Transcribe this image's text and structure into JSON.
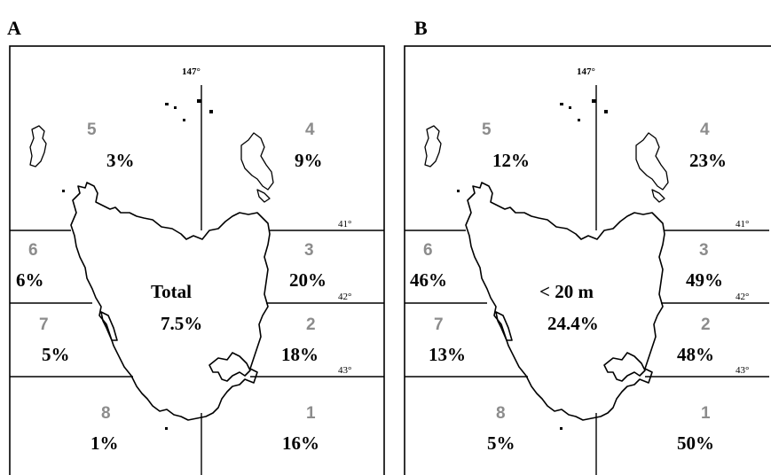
{
  "panels": [
    {
      "letter": "A",
      "top_coord": "147°",
      "center_title": "Total",
      "center_value": "7.5%",
      "lat_labels": [
        "41°",
        "42°",
        "43°"
      ],
      "zones": [
        {
          "num": "1",
          "pct": "16%"
        },
        {
          "num": "2",
          "pct": "18%"
        },
        {
          "num": "3",
          "pct": "20%"
        },
        {
          "num": "4",
          "pct": "9%"
        },
        {
          "num": "5",
          "pct": "3%"
        },
        {
          "num": "6",
          "pct": "6%"
        },
        {
          "num": "7",
          "pct": "5%"
        },
        {
          "num": "8",
          "pct": "1%"
        }
      ]
    },
    {
      "letter": "B",
      "top_coord": "147°",
      "center_title": "< 20 m",
      "center_value": "24.4%",
      "lat_labels": [
        "41°",
        "42°",
        "43°"
      ],
      "zones": [
        {
          "num": "1",
          "pct": "50%"
        },
        {
          "num": "2",
          "pct": "48%"
        },
        {
          "num": "3",
          "pct": "49%"
        },
        {
          "num": "4",
          "pct": "23%"
        },
        {
          "num": "5",
          "pct": "12%"
        },
        {
          "num": "6",
          "pct": "46%"
        },
        {
          "num": "7",
          "pct": "13%"
        },
        {
          "num": "8",
          "pct": "5%"
        }
      ]
    }
  ]
}
